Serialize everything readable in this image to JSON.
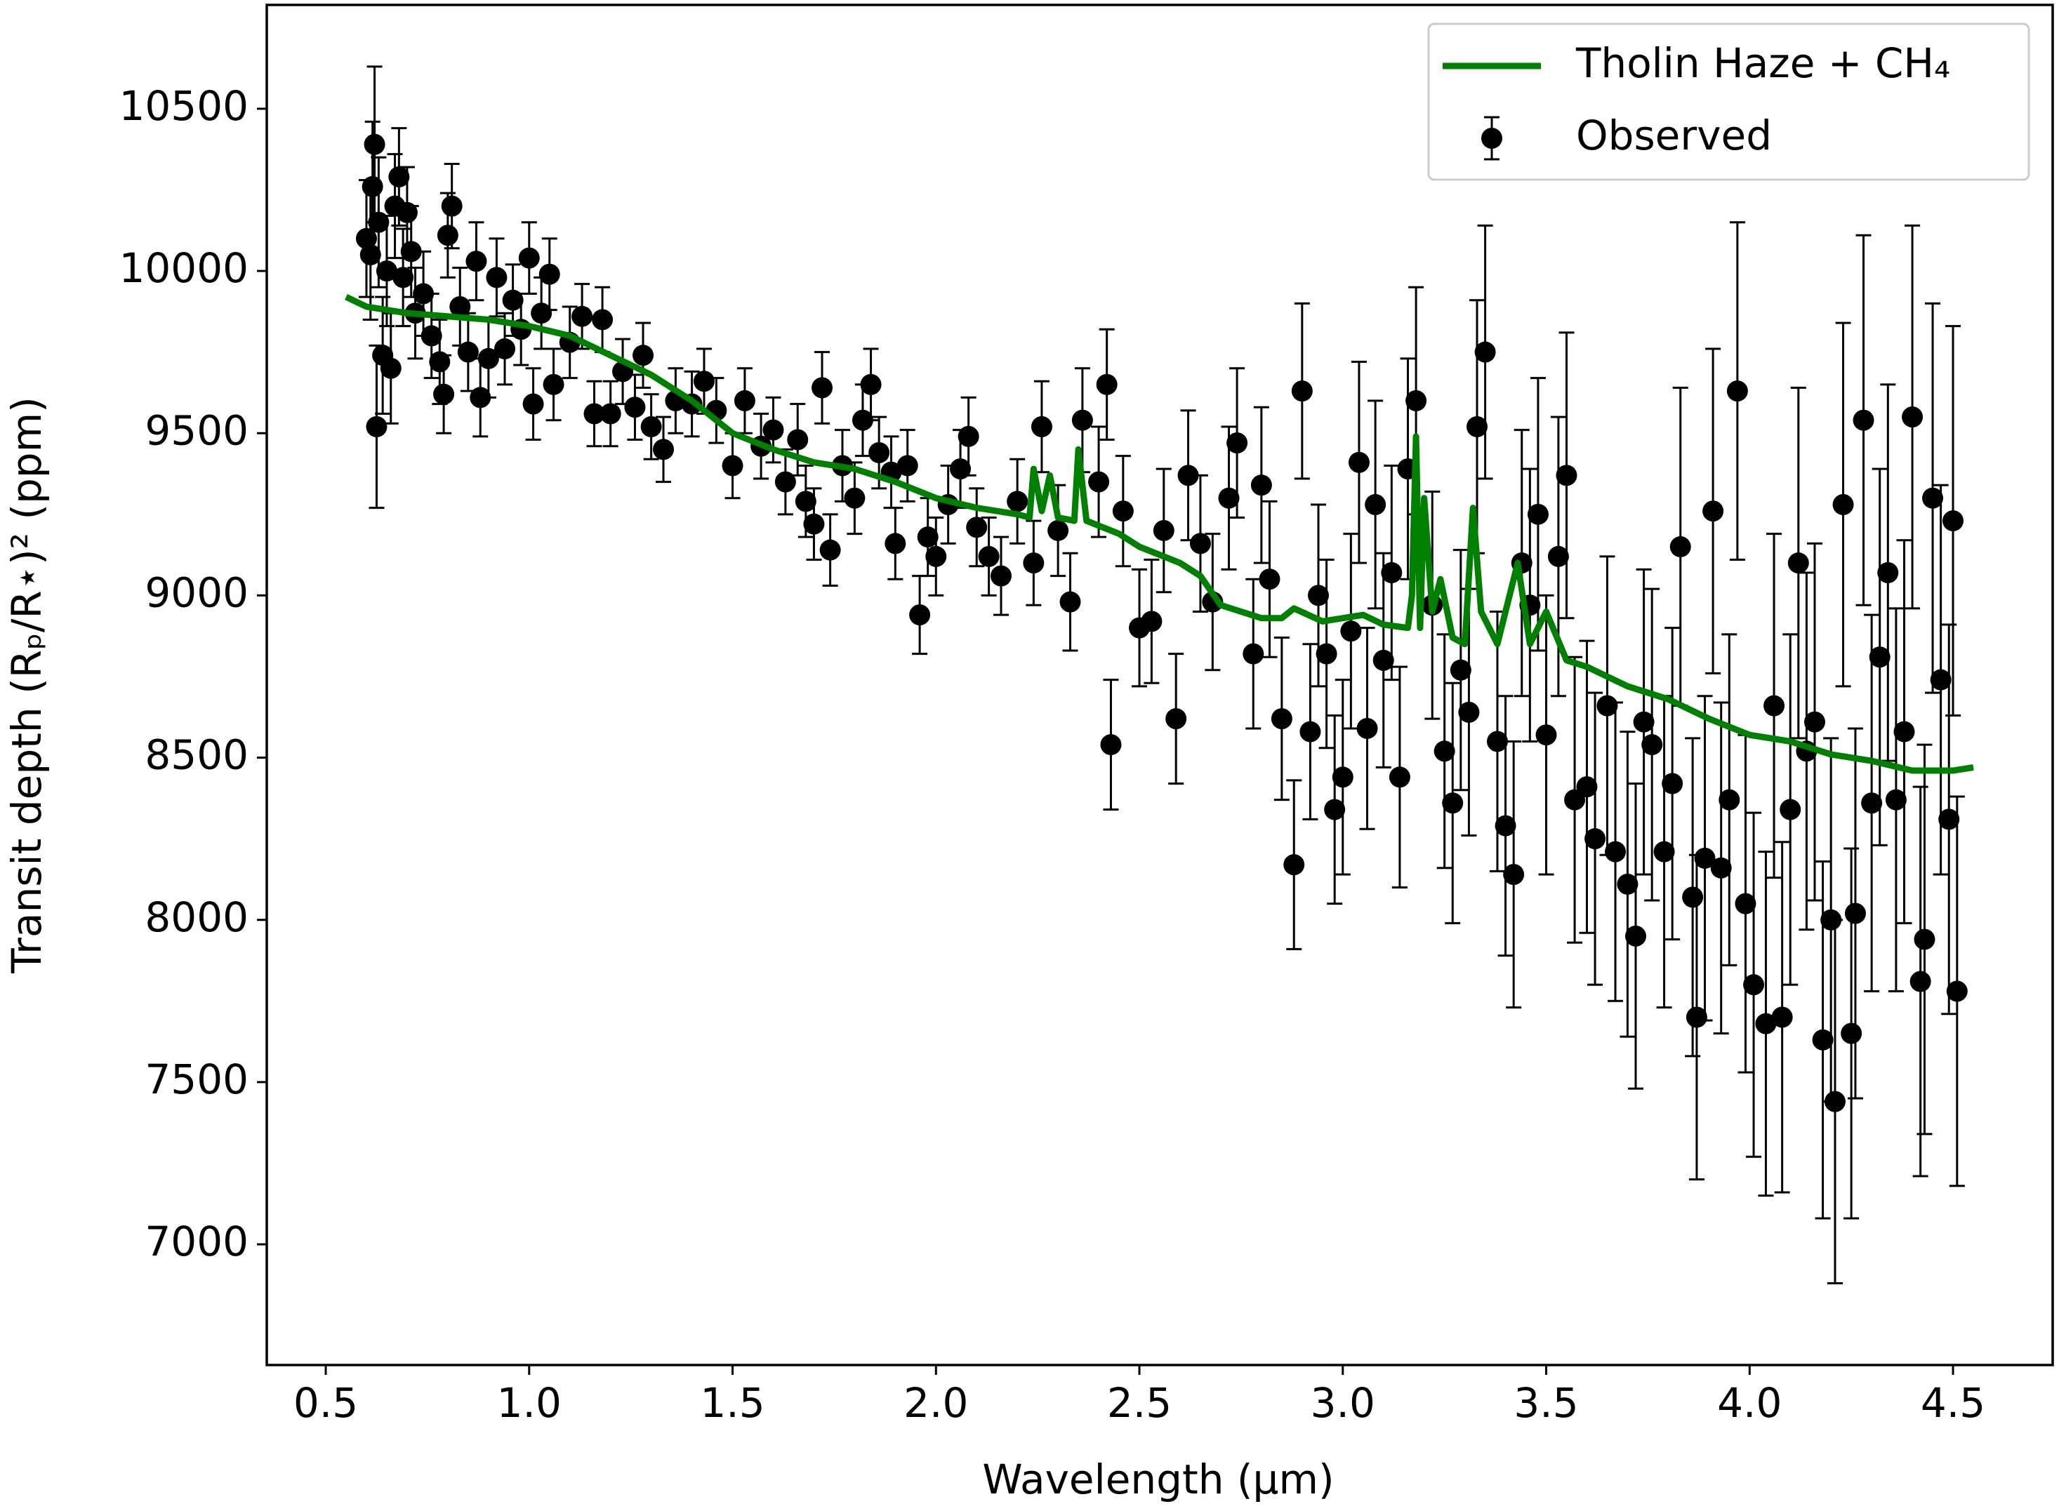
{
  "chart_data": {
    "type": "scatter",
    "xlabel": "Wavelength (μm)",
    "ylabel": "Transit depth (Rₚ/R⋆)² (ppm)",
    "xlim": [
      0.355,
      4.745
    ],
    "ylim": [
      6628,
      10820
    ],
    "xticks": [
      0.5,
      {
        "value": 1,
        "label": "1.0"
      },
      1.5,
      {
        "value": 2,
        "label": "2.0"
      },
      2.5,
      {
        "value": 3,
        "label": "3.0"
      },
      3.5,
      {
        "value": 4,
        "label": "4.0"
      },
      4.5
    ],
    "yticks": [
      7000,
      7500,
      8000,
      8500,
      9000,
      9500,
      10000,
      10500
    ],
    "legend": "upper right",
    "series": [
      {
        "name": "Tholin Haze + CH₄",
        "type": "line",
        "color": "#008000",
        "x": [
          0.55,
          0.6,
          0.7,
          0.8,
          0.9,
          1.0,
          1.1,
          1.2,
          1.3,
          1.4,
          1.5,
          1.6,
          1.7,
          1.8,
          1.9,
          2.0,
          2.1,
          2.2,
          2.23,
          2.24,
          2.26,
          2.28,
          2.3,
          2.34,
          2.35,
          2.37,
          2.45,
          2.5,
          2.6,
          2.65,
          2.7,
          2.8,
          2.85,
          2.88,
          2.95,
          3.05,
          3.1,
          3.16,
          3.17,
          3.18,
          3.19,
          3.2,
          3.22,
          3.24,
          3.27,
          3.3,
          3.32,
          3.34,
          3.38,
          3.43,
          3.46,
          3.5,
          3.55,
          3.6,
          3.7,
          3.8,
          3.9,
          4.0,
          4.1,
          4.2,
          4.3,
          4.4,
          4.5,
          4.55
        ],
        "values": [
          9920,
          9890,
          9870,
          9860,
          9850,
          9830,
          9800,
          9740,
          9680,
          9600,
          9500,
          9450,
          9410,
          9390,
          9350,
          9300,
          9270,
          9250,
          9240,
          9390,
          9260,
          9370,
          9240,
          9230,
          9450,
          9230,
          9190,
          9150,
          9100,
          9060,
          8970,
          8930,
          8930,
          8960,
          8920,
          8940,
          8910,
          8900,
          9000,
          9490,
          8900,
          9300,
          8950,
          9050,
          8870,
          8850,
          9270,
          8950,
          8850,
          9100,
          8850,
          8950,
          8800,
          8780,
          8720,
          8680,
          8620,
          8570,
          8550,
          8510,
          8490,
          8460,
          8460,
          8470
        ]
      },
      {
        "name": "Observed",
        "type": "errorbar",
        "color": "#000000",
        "x": [
          0.6,
          0.61,
          0.615,
          0.62,
          0.625,
          0.63,
          0.64,
          0.65,
          0.66,
          0.67,
          0.68,
          0.69,
          0.7,
          0.71,
          0.72,
          0.74,
          0.76,
          0.78,
          0.79,
          0.8,
          0.81,
          0.83,
          0.85,
          0.87,
          0.88,
          0.9,
          0.92,
          0.94,
          0.96,
          0.98,
          1.0,
          1.01,
          1.03,
          1.05,
          1.06,
          1.1,
          1.13,
          1.16,
          1.18,
          1.2,
          1.23,
          1.26,
          1.28,
          1.3,
          1.33,
          1.36,
          1.4,
          1.43,
          1.46,
          1.5,
          1.53,
          1.57,
          1.6,
          1.63,
          1.66,
          1.68,
          1.7,
          1.72,
          1.74,
          1.77,
          1.8,
          1.82,
          1.84,
          1.86,
          1.89,
          1.9,
          1.93,
          1.96,
          1.98,
          2.0,
          2.03,
          2.06,
          2.08,
          2.1,
          2.13,
          2.16,
          2.2,
          2.24,
          2.26,
          2.3,
          2.33,
          2.36,
          2.4,
          2.42,
          2.43,
          2.46,
          2.5,
          2.53,
          2.56,
          2.59,
          2.62,
          2.65,
          2.68,
          2.72,
          2.74,
          2.78,
          2.8,
          2.82,
          2.85,
          2.88,
          2.9,
          2.92,
          2.94,
          2.96,
          2.98,
          3.0,
          3.02,
          3.04,
          3.06,
          3.08,
          3.1,
          3.12,
          3.14,
          3.16,
          3.18,
          3.22,
          3.25,
          3.27,
          3.29,
          3.31,
          3.33,
          3.35,
          3.38,
          3.4,
          3.42,
          3.44,
          3.46,
          3.48,
          3.5,
          3.53,
          3.55,
          3.57,
          3.6,
          3.62,
          3.65,
          3.67,
          3.7,
          3.72,
          3.74,
          3.76,
          3.79,
          3.81,
          3.83,
          3.86,
          3.87,
          3.89,
          3.91,
          3.93,
          3.95,
          3.97,
          3.99,
          4.01,
          4.04,
          4.06,
          4.08,
          4.1,
          4.12,
          4.14,
          4.16,
          4.18,
          4.2,
          4.21,
          4.23,
          4.25,
          4.26,
          4.28,
          4.3,
          4.32,
          4.34,
          4.36,
          4.38,
          4.4,
          4.42,
          4.43,
          4.45,
          4.47,
          4.49,
          4.5,
          4.51
        ],
        "values": [
          10100,
          10050,
          10260,
          10390,
          9520,
          10150,
          9740,
          10000,
          9700,
          10200,
          10290,
          9980,
          10180,
          10060,
          9870,
          9930,
          9800,
          9720,
          9620,
          10110,
          10200,
          9890,
          9750,
          10030,
          9610,
          9730,
          9980,
          9760,
          9910,
          9820,
          10040,
          9590,
          9870,
          9990,
          9650,
          9780,
          9860,
          9560,
          9850,
          9560,
          9690,
          9580,
          9740,
          9520,
          9450,
          9600,
          9590,
          9660,
          9570,
          9400,
          9600,
          9460,
          9510,
          9350,
          9480,
          9290,
          9220,
          9640,
          9140,
          9400,
          9300,
          9540,
          9650,
          9440,
          9380,
          9160,
          9400,
          8940,
          9180,
          9120,
          9280,
          9390,
          9490,
          9210,
          9120,
          9060,
          9290,
          9100,
          9520,
          9200,
          8980,
          9540,
          9350,
          9650,
          8540,
          9260,
          8900,
          8920,
          9200,
          8620,
          9370,
          9160,
          8980,
          9300,
          9470,
          8820,
          9340,
          9050,
          8620,
          8170,
          9630,
          8580,
          9000,
          8820,
          8340,
          8440,
          8890,
          9410,
          8590,
          9280,
          8800,
          9070,
          8440,
          9390,
          9600,
          8970,
          8520,
          8360,
          8770,
          8640,
          9520,
          9750,
          8550,
          8290,
          8140,
          9100,
          8970,
          9250,
          8570,
          9120,
          9370,
          8370,
          8410,
          8250,
          8660,
          8210,
          8110,
          7950,
          8610,
          8540,
          8210,
          8420,
          9150,
          8070,
          7700,
          8190,
          9260,
          8160,
          8370,
          9630,
          8050,
          7800,
          7680,
          8660,
          7700,
          8340,
          9100,
          8520,
          8610,
          7630,
          8000,
          7440,
          9280,
          7650,
          8020,
          9540,
          8360,
          8810,
          9070,
          8370,
          8580,
          9550,
          7810,
          7940,
          9300,
          8740,
          8310,
          9230,
          7780
        ],
        "errors": [
          180,
          200,
          200,
          240,
          250,
          200,
          180,
          170,
          170,
          160,
          150,
          150,
          140,
          140,
          140,
          130,
          130,
          130,
          120,
          130,
          130,
          120,
          120,
          120,
          120,
          120,
          120,
          110,
          110,
          110,
          110,
          110,
          110,
          110,
          110,
          110,
          100,
          100,
          100,
          100,
          100,
          100,
          100,
          100,
          100,
          100,
          100,
          100,
          100,
          100,
          100,
          100,
          100,
          100,
          110,
          110,
          110,
          110,
          110,
          110,
          110,
          110,
          110,
          110,
          110,
          110,
          110,
          120,
          120,
          120,
          120,
          120,
          120,
          120,
          120,
          120,
          130,
          130,
          140,
          140,
          150,
          160,
          170,
          170,
          200,
          170,
          180,
          190,
          190,
          200,
          200,
          210,
          210,
          220,
          230,
          230,
          240,
          240,
          250,
          260,
          270,
          270,
          280,
          290,
          290,
          300,
          300,
          310,
          310,
          320,
          330,
          330,
          340,
          340,
          350,
          350,
          360,
          370,
          370,
          380,
          390,
          390,
          400,
          400,
          410,
          410,
          420,
          420,
          430,
          430,
          440,
          440,
          450,
          450,
          460,
          460,
          470,
          470,
          470,
          480,
          480,
          480,
          490,
          490,
          500,
          500,
          500,
          510,
          510,
          520,
          520,
          530,
          530,
          530,
          540,
          540,
          540,
          550,
          550,
          550,
          560,
          560,
          560,
          570,
          570,
          570,
          580,
          580,
          580,
          590,
          590,
          590,
          600,
          600,
          600,
          600,
          600,
          600,
          600
        ]
      }
    ]
  }
}
